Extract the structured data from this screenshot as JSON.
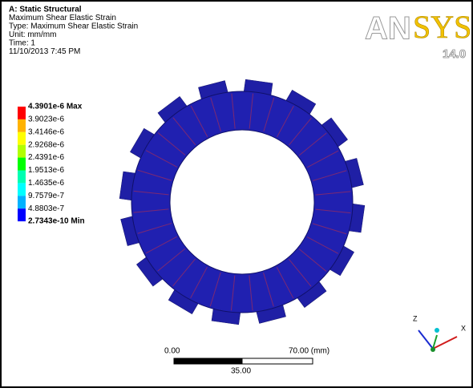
{
  "header": {
    "title": "A: Static Structural",
    "lines": [
      "Maximum Shear Elastic Strain",
      "Type: Maximum Shear Elastic Strain",
      "Unit: mm/mm",
      "Time: 1",
      "11/10/2013 7:45 PM"
    ]
  },
  "legend": {
    "labels": [
      "4.3901e-6 Max",
      "3.9023e-6",
      "3.4146e-6",
      "2.9268e-6",
      "2.4391e-6",
      "1.9513e-6",
      "1.4635e-6",
      "9.7579e-7",
      "4.8803e-7",
      "2.7343e-10 Min"
    ],
    "colors": [
      "#ff0000",
      "#ffb200",
      "#ffff00",
      "#b2ff00",
      "#00ff00",
      "#00ffb2",
      "#00ffff",
      "#00b2ff",
      "#0000ff"
    ]
  },
  "logo": {
    "name_a": "AN",
    "name_b": "SYS",
    "version": "14.0"
  },
  "scale_bar": {
    "start": "0.00",
    "end": "70.00 (mm)",
    "mid": "35.00"
  },
  "triad": {
    "z": "Z",
    "x": "X"
  }
}
